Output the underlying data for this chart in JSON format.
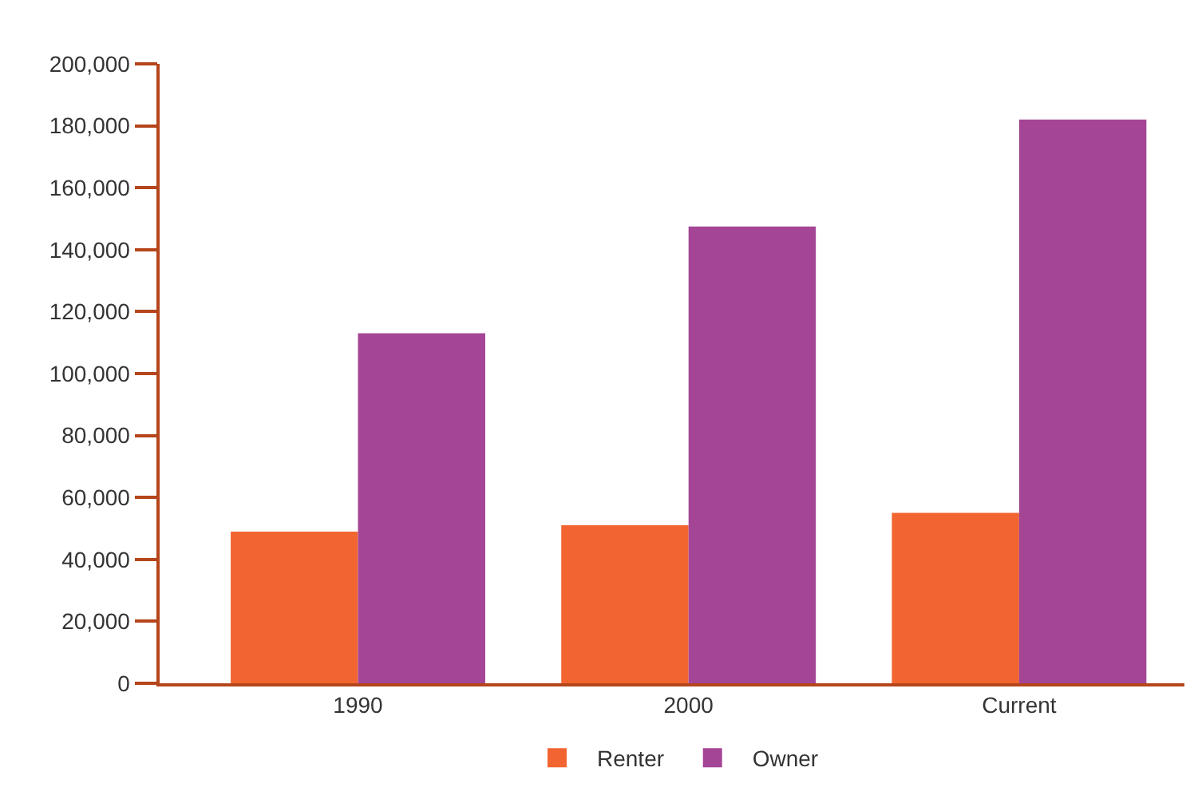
{
  "chart_data": {
    "type": "bar",
    "categories": [
      "1990",
      "2000",
      "Current"
    ],
    "series": [
      {
        "name": "Renter",
        "color": "#f26531",
        "values": [
          49000,
          51000,
          55000
        ]
      },
      {
        "name": "Owner",
        "color": "#a54596",
        "values": [
          113000,
          147500,
          182000
        ]
      }
    ],
    "ylim": [
      0,
      200000
    ],
    "yticks": [
      {
        "value": 0,
        "label": "0"
      },
      {
        "value": 20000,
        "label": "20,000"
      },
      {
        "value": 40000,
        "label": "40,000"
      },
      {
        "value": 60000,
        "label": "60,000"
      },
      {
        "value": 80000,
        "label": "80,000"
      },
      {
        "value": 100000,
        "label": "100,000"
      },
      {
        "value": 120000,
        "label": "120,000"
      },
      {
        "value": 140000,
        "label": "140,000"
      },
      {
        "value": 160000,
        "label": "160,000"
      },
      {
        "value": 180000,
        "label": "180,000"
      },
      {
        "value": 200000,
        "label": "200,000"
      }
    ],
    "legend": "bottom"
  }
}
